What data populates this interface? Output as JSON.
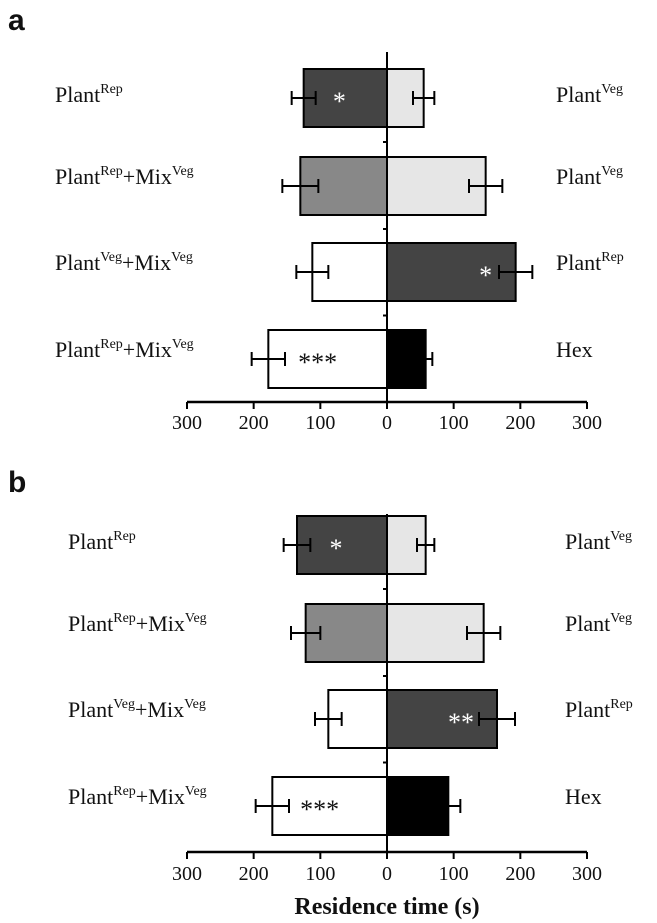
{
  "chart_data": [
    {
      "type": "bar",
      "orientation": "horizontal-diverging",
      "panel": "a",
      "xlim": [
        -300,
        300
      ],
      "xticks": [
        "300",
        "200",
        "100",
        "0",
        "100",
        "200",
        "300"
      ],
      "rows": [
        {
          "left_label": {
            "base": "Plant",
            "sup": "Rep"
          },
          "right_label": {
            "base": "Plant",
            "sup": "Veg"
          },
          "left_value": 125,
          "left_err": 18,
          "right_value": 55,
          "right_err": 16,
          "left_color": "#444444",
          "right_color": "#e6e6e6",
          "left_sig": "*",
          "right_sig": ""
        },
        {
          "left_label": {
            "base": "Plant",
            "sup": "Rep",
            "base2": "+Mix",
            "sup2": "Veg"
          },
          "right_label": {
            "base": "Plant",
            "sup": "Veg"
          },
          "left_value": 130,
          "left_err": 27,
          "right_value": 148,
          "right_err": 25,
          "left_color": "#888888",
          "right_color": "#e6e6e6",
          "left_sig": "",
          "right_sig": ""
        },
        {
          "left_label": {
            "base": "Plant",
            "sup": "Veg",
            "base2": "+Mix",
            "sup2": "Veg"
          },
          "right_label": {
            "base": "Plant",
            "sup": "Rep"
          },
          "left_value": 112,
          "left_err": 24,
          "right_value": 193,
          "right_err": 25,
          "left_color": "#ffffff",
          "right_color": "#444444",
          "left_sig": "",
          "right_sig": "*"
        },
        {
          "left_label": {
            "base": "Plant",
            "sup": "Rep",
            "base2": "+Mix",
            "sup2": "Veg"
          },
          "right_label": {
            "base": "Hex"
          },
          "left_value": 178,
          "left_err": 25,
          "right_value": 58,
          "right_err": 10,
          "left_color": "#ffffff",
          "right_color": "#000000",
          "left_sig": "***",
          "right_sig": ""
        }
      ]
    },
    {
      "type": "bar",
      "orientation": "horizontal-diverging",
      "panel": "b",
      "xlim": [
        -300,
        300
      ],
      "xticks": [
        "300",
        "200",
        "100",
        "0",
        "100",
        "200",
        "300"
      ],
      "xlabel": "Residence time (s)",
      "rows": [
        {
          "left_label": {
            "base": "Plant",
            "sup": "Rep"
          },
          "right_label": {
            "base": "Plant",
            "sup": "Veg"
          },
          "left_value": 135,
          "left_err": 20,
          "right_value": 58,
          "right_err": 13,
          "left_color": "#444444",
          "right_color": "#e6e6e6",
          "left_sig": "*",
          "right_sig": ""
        },
        {
          "left_label": {
            "base": "Plant",
            "sup": "Rep",
            "base2": "+Mix",
            "sup2": "Veg"
          },
          "right_label": {
            "base": "Plant",
            "sup": "Veg"
          },
          "left_value": 122,
          "left_err": 22,
          "right_value": 145,
          "right_err": 25,
          "left_color": "#888888",
          "right_color": "#e6e6e6",
          "left_sig": "",
          "right_sig": ""
        },
        {
          "left_label": {
            "base": "Plant",
            "sup": "Veg",
            "base2": "+Mix",
            "sup2": "Veg"
          },
          "right_label": {
            "base": "Plant",
            "sup": "Rep"
          },
          "left_value": 88,
          "left_err": 20,
          "right_value": 165,
          "right_err": 27,
          "left_color": "#ffffff",
          "right_color": "#444444",
          "left_sig": "",
          "right_sig": "**"
        },
        {
          "left_label": {
            "base": "Plant",
            "sup": "Rep",
            "base2": "+Mix",
            "sup2": "Veg"
          },
          "right_label": {
            "base": "Hex"
          },
          "left_value": 172,
          "left_err": 25,
          "right_value": 92,
          "right_err": 18,
          "left_color": "#ffffff",
          "right_color": "#000000",
          "left_sig": "***",
          "right_sig": ""
        }
      ]
    }
  ]
}
